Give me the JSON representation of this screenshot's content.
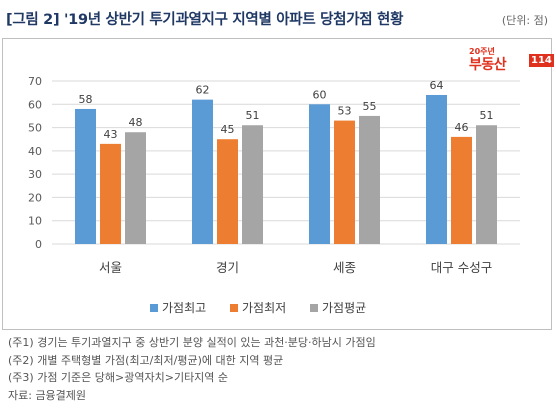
{
  "header": {
    "title": "[그림 2] '19년 상반기 투기과열지구 지역별 아파트 당첨가점 현황",
    "unit": "(단위: 점)"
  },
  "logo": {
    "badge": "20주년",
    "name": "부동산",
    "number": "114"
  },
  "notes": [
    "(주1) 경기는 투기과열지구 중 상반기 분양 실적이 있는 과천·분당·하남시 가점임",
    "(주2) 개별 주택형별 가점(최고/최저/평균)에 대한 지역 평균",
    "(주3) 가점 기준은 당해>광역자치>기타지역 순",
    "자료: 금융결제원"
  ],
  "chart_data": {
    "type": "bar",
    "title": "",
    "xlabel": "",
    "ylabel": "",
    "categories": [
      "서울",
      "경기",
      "세종",
      "대구 수성구"
    ],
    "series": [
      {
        "name": "가점최고",
        "values": [
          58,
          62,
          60,
          64
        ],
        "color": "#5b9bd5"
      },
      {
        "name": "가점최저",
        "values": [
          43,
          45,
          53,
          46
        ],
        "color": "#ed7d31"
      },
      {
        "name": "가점평균",
        "values": [
          48,
          51,
          55,
          51
        ],
        "color": "#a5a5a5"
      }
    ],
    "ylim": [
      0,
      70
    ],
    "yticks": [
      0,
      10,
      20,
      30,
      40,
      50,
      60,
      70
    ],
    "grid": true,
    "legend": "bottom"
  }
}
